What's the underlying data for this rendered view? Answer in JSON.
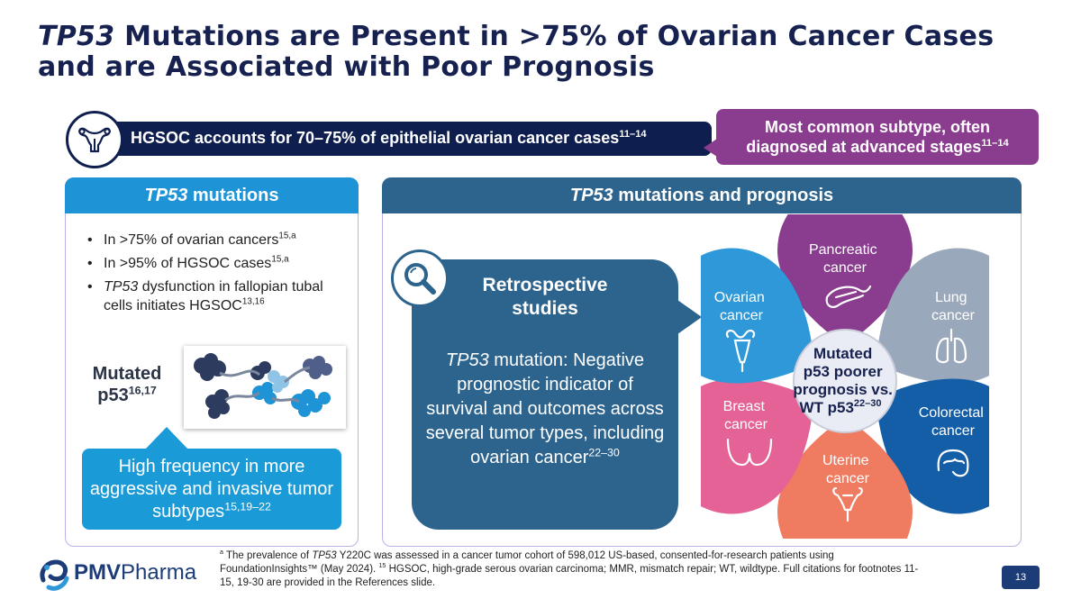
{
  "title": {
    "gene": "TP53",
    "line1_rest": " Mutations are Present in >75% of Ovarian Cancer Cases",
    "line2": "and are Associated with Poor Prognosis"
  },
  "banner": {
    "text": "HGSOC accounts for 70–75% of epithelial ovarian cancer cases",
    "sup": "11–14",
    "icon": "uterus-icon"
  },
  "callout": {
    "line1": "Most common subtype, often",
    "line2": "diagnosed at advanced stages",
    "sup": "11–14"
  },
  "left_panel": {
    "header_gene": "TP53",
    "header_rest": " mutations",
    "bullets": [
      {
        "text": "In >75% of ovarian cancers",
        "sup": "15,a"
      },
      {
        "text": "In >95% of HGSOC cases",
        "sup": "15,a"
      },
      {
        "gene": "TP53",
        "text": " dysfunction in fallopian tubal cells initiates HGSOC",
        "sup": "13,16"
      }
    ],
    "mutated_label_line1": "Mutated",
    "mutated_label_line2": "p53",
    "mutated_sup": "16,17",
    "frequency_text": "High frequency in more aggressive and invasive tumor subtypes",
    "frequency_sup": "15,19–22"
  },
  "right_panel": {
    "header_gene": "TP53",
    "header_rest": " mutations and prognosis",
    "retro_heading_line1": "Retrospective",
    "retro_heading_line2": "studies",
    "retro_gene": "TP53",
    "retro_body_rest": " mutation: Negative prognostic indicator of survival and outcomes across several tumor types, including ovarian cancer",
    "retro_sup": "22–30",
    "flower": {
      "center_lines": [
        "Mutated",
        "p53 poorer",
        "prognosis vs.",
        "WT p53"
      ],
      "center_sup": "22–30",
      "petals": [
        {
          "name": "pancreatic",
          "line1": "Pancreatic",
          "line2": "cancer",
          "color": "#8a3d8e",
          "icon": "pancreas-icon"
        },
        {
          "name": "lung",
          "line1": "Lung",
          "line2": "cancer",
          "color": "#9aa8bb",
          "icon": "lungs-icon"
        },
        {
          "name": "colorectal",
          "line1": "Colorectal",
          "line2": "cancer",
          "color": "#145ea8",
          "icon": "colon-icon"
        },
        {
          "name": "uterine",
          "line1": "Uterine",
          "line2": "cancer",
          "color": "#ef7b61",
          "icon": "uterus-icon"
        },
        {
          "name": "breast",
          "line1": "Breast",
          "line2": "cancer",
          "color": "#e46296",
          "icon": "breast-icon"
        },
        {
          "name": "ovarian",
          "line1": "Ovarian",
          "line2": "cancer",
          "color": "#2e98d8",
          "icon": "ovary-icon"
        }
      ]
    }
  },
  "footnote": {
    "a_mark": "a",
    "part1": " The prevalence of ",
    "gene": "TP53",
    "part2": " Y220C was assessed in a cancer tumor cohort of 598,012 US-based, consented-for-research patients using FoundationInsights™ (May 2024). ",
    "mark15": "15",
    "part3": " HGSOC, high-grade serous ovarian carcinoma; MMR, mismatch repair; WT, wildtype. Full citations for footnotes 11-15, 19-30 are provided in the References slide."
  },
  "logo": {
    "bold": "PMV",
    "regular": "Pharma"
  },
  "page_number": "13"
}
